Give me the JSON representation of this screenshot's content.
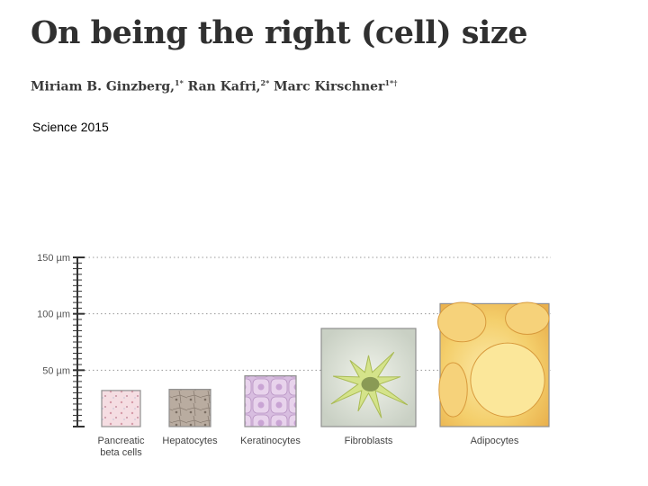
{
  "title": "On being the right (cell) size",
  "authors": [
    {
      "name": "Miriam B. Ginzberg,",
      "sup": "1*"
    },
    {
      "name": "Ran Kafri,",
      "sup": "2*"
    },
    {
      "name": "Marc Kirschner",
      "sup": "1*†"
    }
  ],
  "venue": "Science 2015",
  "chart_data": {
    "type": "bar",
    "title": "",
    "xlabel": "",
    "ylabel": "",
    "ylim": [
      0,
      150
    ],
    "y_ticks": [
      {
        "value": 50,
        "label": "50 µm"
      },
      {
        "value": 100,
        "label": "100 µm"
      },
      {
        "value": 150,
        "label": "150 µm"
      }
    ],
    "categories": [
      "Pancreatic\nbeta cells",
      "Hepatocytes",
      "Keratinocytes",
      "Fibroblasts",
      "Adipocytes"
    ],
    "values": [
      32,
      33,
      45,
      87,
      109
    ],
    "colors": [
      "#f5dde2",
      "#b9aca0",
      "#d8bde0",
      "#dde4d2",
      "#f1c660"
    ]
  }
}
